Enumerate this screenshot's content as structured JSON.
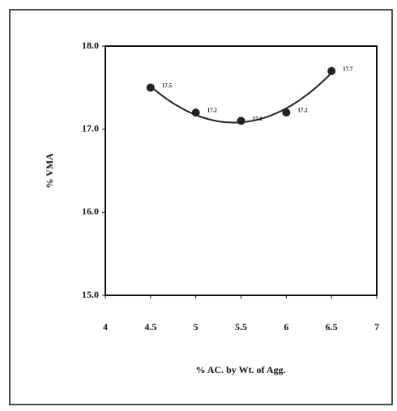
{
  "chart_data": {
    "type": "scatter",
    "x_label": "% AC. by Wt. of Agg.",
    "y_label": "% VMA",
    "x": [
      4.5,
      5,
      5.5,
      6,
      6.5
    ],
    "values": [
      17.5,
      17.2,
      17.1,
      17.2,
      17.7
    ],
    "color": "#222222",
    "trendline": "polynomial",
    "xlim": [
      4,
      7
    ],
    "xticks": [
      4,
      4.5,
      5,
      5.5,
      6,
      6.5,
      7
    ],
    "ylim": [
      15,
      18
    ],
    "yticks": [
      {
        "value": 15,
        "label": "15.0"
      },
      {
        "value": 16,
        "label": "16.0"
      },
      {
        "value": 17,
        "label": "17.0"
      },
      {
        "value": 18,
        "label": "18.0"
      }
    ]
  }
}
